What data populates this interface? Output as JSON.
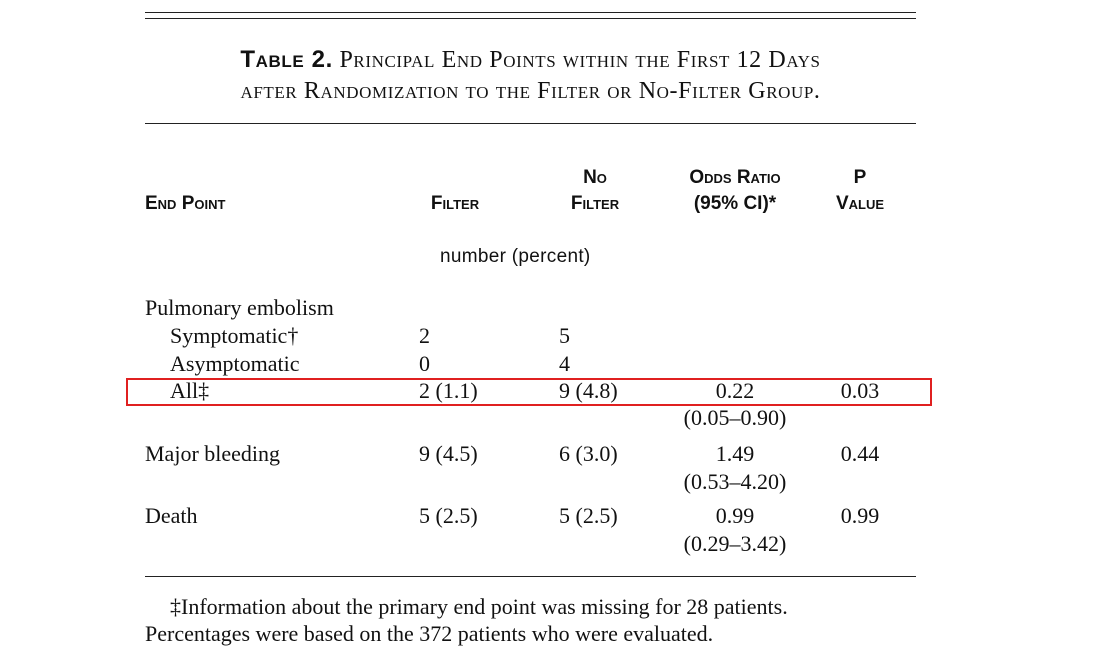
{
  "table": {
    "title_lead": "Table 2.",
    "title_rest": "Principal End Points within the First 12 Days",
    "title_line2": "after Randomization to the Filter or No-Filter Group.",
    "columns": {
      "end_point": "End Point",
      "filter": "Filter",
      "no_filter_line1": "No",
      "no_filter_line2": "Filter",
      "odds_ratio_line1": "Odds Ratio",
      "odds_ratio_line2": "(95% CI)*",
      "p_line1": "P",
      "p_line2": "Value"
    },
    "units": "number (percent)",
    "rows": {
      "pe_header": "Pulmonary embolism",
      "symptomatic": {
        "label": "Symptomatic†",
        "filter": "2",
        "no_filter": "5"
      },
      "asymptomatic": {
        "label": "Asymptomatic",
        "filter": "0",
        "no_filter": "4"
      },
      "all": {
        "label": "All‡",
        "filter": "2 (1.1)",
        "no_filter": "9 (4.8)",
        "or": "0.22",
        "ci": "(0.05–0.90)",
        "p": "0.03"
      },
      "major_bleeding": {
        "label": "Major bleeding",
        "filter": "9 (4.5)",
        "no_filter": "6 (3.0)",
        "or": "1.49",
        "ci": "(0.53–4.20)",
        "p": "0.44"
      },
      "death": {
        "label": "Death",
        "filter": "5 (2.5)",
        "no_filter": "5 (2.5)",
        "or": "0.99",
        "ci": "(0.29–3.42)",
        "p": "0.99"
      }
    },
    "footnote_line1": "‡Information about the primary end point was missing for 28 patients.",
    "footnote_line2": "Percentages were based on the 372 patients who were evaluated."
  },
  "highlight": {
    "color": "#e02020",
    "target_row": "All‡"
  }
}
